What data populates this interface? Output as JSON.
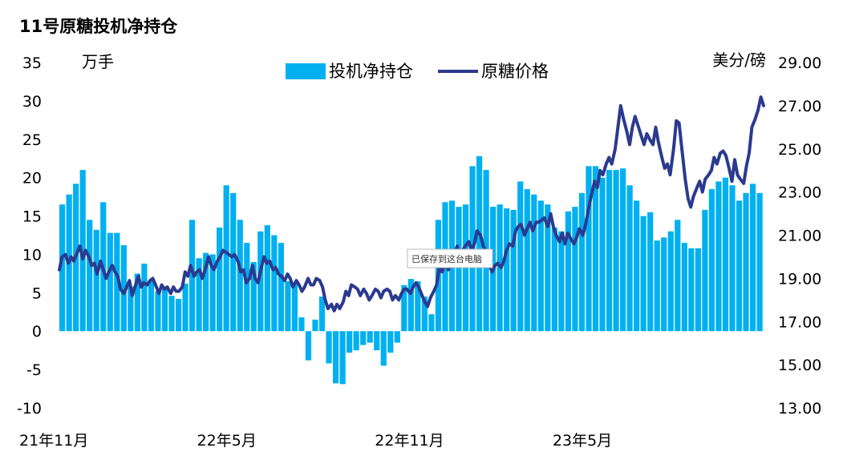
{
  "chart_data": {
    "type": "bar",
    "title": "11号原糖投机净持仓",
    "left_unit": "万手",
    "right_unit": "美分/磅",
    "y_left": {
      "min": -10,
      "max": 35,
      "ticks": [
        35,
        30,
        25,
        20,
        15,
        10,
        5,
        0,
        -5,
        -10
      ]
    },
    "y_right": {
      "min": 13,
      "max": 29,
      "ticks": [
        "29.00",
        "27.00",
        "25.00",
        "23.00",
        "21.00",
        "19.00",
        "17.00",
        "15.00",
        "13.00"
      ]
    },
    "x_tick_labels": [
      "21年11月",
      "22年5月",
      "22年11月",
      "23年5月"
    ],
    "x_tick_index": [
      0,
      26,
      52,
      78
    ],
    "grid": false,
    "legend_position": "top-center",
    "bar_color": "#00b0f0",
    "line_color": "#2b3a8f",
    "series": [
      {
        "name": "投机净持仓",
        "type": "bar",
        "values": [
          16.5,
          17.8,
          19.2,
          21.0,
          14.5,
          13.2,
          16.8,
          12.8,
          12.8,
          11.2,
          5.8,
          7.5,
          8.8,
          6.5,
          5.2,
          5.5,
          4.6,
          4.2,
          6.2,
          14.5,
          9.5,
          10.2,
          10.0,
          13.5,
          19.0,
          18.0,
          14.5,
          11.5,
          9.0,
          13.0,
          13.8,
          12.5,
          11.5,
          6.5,
          6.2,
          1.8,
          -3.8,
          1.5,
          4.5,
          -4.2,
          -6.8,
          -6.9,
          -2.8,
          -2.5,
          -1.8,
          -1.5,
          -2.5,
          -4.5,
          -2.8,
          -1.5,
          6.0,
          6.8,
          6.5,
          4.5,
          2.2,
          14.5,
          16.8,
          17.0,
          16.2,
          16.5,
          21.5,
          22.8,
          21.0,
          16.2,
          16.5,
          16.0,
          15.8,
          19.5,
          18.5,
          17.8,
          17.0,
          16.5,
          13.5,
          13.0,
          15.6,
          16.2,
          18.0,
          21.5,
          21.5,
          20.0,
          21.0,
          21.0,
          21.2,
          19.0,
          17.0,
          15.0,
          15.5,
          11.8,
          12.2,
          13.0,
          14.5,
          11.5,
          10.8,
          10.8,
          15.8,
          18.5,
          19.5,
          20.0,
          19.0,
          17.0,
          18.0,
          19.2,
          18.0
        ]
      },
      {
        "name": "原糖价格",
        "type": "line",
        "x_range": [
          0,
          102.5
        ],
        "points": [
          [
            0.0,
            19.4
          ],
          [
            0.4,
            20.0
          ],
          [
            0.9,
            20.1
          ],
          [
            1.3,
            19.7
          ],
          [
            1.7,
            20.0
          ],
          [
            2.1,
            19.8
          ],
          [
            2.6,
            20.2
          ],
          [
            3.0,
            20.5
          ],
          [
            3.4,
            19.9
          ],
          [
            3.8,
            20.3
          ],
          [
            4.3,
            20.0
          ],
          [
            4.7,
            19.6
          ],
          [
            5.1,
            19.7
          ],
          [
            5.5,
            19.2
          ],
          [
            6.0,
            19.8
          ],
          [
            6.4,
            19.4
          ],
          [
            6.8,
            19.0
          ],
          [
            7.2,
            19.3
          ],
          [
            7.7,
            19.6
          ],
          [
            8.1,
            19.3
          ],
          [
            8.5,
            19.1
          ],
          [
            8.9,
            18.5
          ],
          [
            9.4,
            18.3
          ],
          [
            9.8,
            18.6
          ],
          [
            10.2,
            18.9
          ],
          [
            10.6,
            18.2
          ],
          [
            11.1,
            18.7
          ],
          [
            11.5,
            19.1
          ],
          [
            11.9,
            18.6
          ],
          [
            12.3,
            18.8
          ],
          [
            12.8,
            18.7
          ],
          [
            13.2,
            18.9
          ],
          [
            13.6,
            19.0
          ],
          [
            14.0,
            18.7
          ],
          [
            14.5,
            18.3
          ],
          [
            14.9,
            18.7
          ],
          [
            15.3,
            18.5
          ],
          [
            15.7,
            18.6
          ],
          [
            16.2,
            18.3
          ],
          [
            16.6,
            18.6
          ],
          [
            17.0,
            18.4
          ],
          [
            17.4,
            18.4
          ],
          [
            17.9,
            18.6
          ],
          [
            18.3,
            19.3
          ],
          [
            18.7,
            19.1
          ],
          [
            19.1,
            19.6
          ],
          [
            19.6,
            19.1
          ],
          [
            20.0,
            19.3
          ],
          [
            20.4,
            19.4
          ],
          [
            20.8,
            19.0
          ],
          [
            21.3,
            19.5
          ],
          [
            21.7,
            20.0
          ],
          [
            22.1,
            19.6
          ],
          [
            22.5,
            19.4
          ],
          [
            23.0,
            19.8
          ],
          [
            23.4,
            20.0
          ],
          [
            23.8,
            20.3
          ],
          [
            24.3,
            20.2
          ],
          [
            24.7,
            20.1
          ],
          [
            25.1,
            20.0
          ],
          [
            25.5,
            20.1
          ],
          [
            26.0,
            19.8
          ],
          [
            26.4,
            19.3
          ],
          [
            26.8,
            19.4
          ],
          [
            27.2,
            18.8
          ],
          [
            27.7,
            19.0
          ],
          [
            28.1,
            19.6
          ],
          [
            28.5,
            19.0
          ],
          [
            28.9,
            18.8
          ],
          [
            29.4,
            19.5
          ],
          [
            29.8,
            20.0
          ],
          [
            30.2,
            19.7
          ],
          [
            30.6,
            19.8
          ],
          [
            31.1,
            19.4
          ],
          [
            31.5,
            19.5
          ],
          [
            31.9,
            19.2
          ],
          [
            32.3,
            19.1
          ],
          [
            32.8,
            18.9
          ],
          [
            33.2,
            19.2
          ],
          [
            33.6,
            19.0
          ],
          [
            34.0,
            18.6
          ],
          [
            34.5,
            18.9
          ],
          [
            34.9,
            18.7
          ],
          [
            35.3,
            18.4
          ],
          [
            35.7,
            18.6
          ],
          [
            36.2,
            19.0
          ],
          [
            36.6,
            18.7
          ],
          [
            37.0,
            18.7
          ],
          [
            37.4,
            19.0
          ],
          [
            37.9,
            18.9
          ],
          [
            38.3,
            18.6
          ],
          [
            38.7,
            18.0
          ],
          [
            39.1,
            17.6
          ],
          [
            39.6,
            17.8
          ],
          [
            40.0,
            17.5
          ],
          [
            40.4,
            17.8
          ],
          [
            40.8,
            17.6
          ],
          [
            41.3,
            17.9
          ],
          [
            41.7,
            18.4
          ],
          [
            42.1,
            18.2
          ],
          [
            42.5,
            18.7
          ],
          [
            43.0,
            18.6
          ],
          [
            43.4,
            18.5
          ],
          [
            43.8,
            18.2
          ],
          [
            44.3,
            18.5
          ],
          [
            44.7,
            18.3
          ],
          [
            45.1,
            18.0
          ],
          [
            45.5,
            18.2
          ],
          [
            46.0,
            18.5
          ],
          [
            46.4,
            18.4
          ],
          [
            46.8,
            18.1
          ],
          [
            47.2,
            18.4
          ],
          [
            47.7,
            18.5
          ],
          [
            48.1,
            18.4
          ],
          [
            48.5,
            18.0
          ],
          [
            48.9,
            18.2
          ],
          [
            49.4,
            18.0
          ],
          [
            49.8,
            18.3
          ],
          [
            50.2,
            18.5
          ],
          [
            50.6,
            18.5
          ],
          [
            51.1,
            18.3
          ],
          [
            51.5,
            18.6
          ],
          [
            51.9,
            18.8
          ],
          [
            52.3,
            18.6
          ],
          [
            52.8,
            18.2
          ],
          [
            53.2,
            17.9
          ],
          [
            53.6,
            17.7
          ],
          [
            54.0,
            18.1
          ],
          [
            54.5,
            18.4
          ],
          [
            54.9,
            18.7
          ],
          [
            55.3,
            19.5
          ],
          [
            55.7,
            19.3
          ],
          [
            56.2,
            19.8
          ],
          [
            56.6,
            19.4
          ],
          [
            57.0,
            19.6
          ],
          [
            57.4,
            20.0
          ],
          [
            57.9,
            20.5
          ],
          [
            58.3,
            19.8
          ],
          [
            58.7,
            20.3
          ],
          [
            59.1,
            20.5
          ],
          [
            59.6,
            20.7
          ],
          [
            60.0,
            20.3
          ],
          [
            60.4,
            20.6
          ],
          [
            60.8,
            21.2
          ],
          [
            61.3,
            21.0
          ],
          [
            61.7,
            20.5
          ],
          [
            62.1,
            20.2
          ],
          [
            62.6,
            19.6
          ],
          [
            63.0,
            19.3
          ],
          [
            63.4,
            19.6
          ],
          [
            63.8,
            19.7
          ],
          [
            64.3,
            19.5
          ],
          [
            64.7,
            19.8
          ],
          [
            65.1,
            20.3
          ],
          [
            65.5,
            20.6
          ],
          [
            66.0,
            20.5
          ],
          [
            66.4,
            21.2
          ],
          [
            66.8,
            21.4
          ],
          [
            67.2,
            21.5
          ],
          [
            67.7,
            21.0
          ],
          [
            68.1,
            21.3
          ],
          [
            68.5,
            21.6
          ],
          [
            68.9,
            21.2
          ],
          [
            69.4,
            21.6
          ],
          [
            69.8,
            21.6
          ],
          [
            70.2,
            21.7
          ],
          [
            70.6,
            21.8
          ],
          [
            71.1,
            21.4
          ],
          [
            71.5,
            22.0
          ],
          [
            71.9,
            21.4
          ],
          [
            72.3,
            21.0
          ],
          [
            72.8,
            20.7
          ],
          [
            73.2,
            21.1
          ],
          [
            73.6,
            20.6
          ],
          [
            74.0,
            21.1
          ],
          [
            74.5,
            20.8
          ],
          [
            74.9,
            20.6
          ],
          [
            75.3,
            20.9
          ],
          [
            75.7,
            21.3
          ],
          [
            76.2,
            21.0
          ],
          [
            76.6,
            21.5
          ],
          [
            77.0,
            22.2
          ],
          [
            77.4,
            22.8
          ],
          [
            77.9,
            23.5
          ],
          [
            78.3,
            23.2
          ],
          [
            78.7,
            24.0
          ],
          [
            79.1,
            23.8
          ],
          [
            79.6,
            24.3
          ],
          [
            80.0,
            24.6
          ],
          [
            80.4,
            24.3
          ],
          [
            80.9,
            25.0
          ],
          [
            81.3,
            26.0
          ],
          [
            81.7,
            27.0
          ],
          [
            82.1,
            26.4
          ],
          [
            82.6,
            25.8
          ],
          [
            83.0,
            25.2
          ],
          [
            83.4,
            26.0
          ],
          [
            83.8,
            26.5
          ],
          [
            84.3,
            26.0
          ],
          [
            84.7,
            25.6
          ],
          [
            85.1,
            25.2
          ],
          [
            85.5,
            25.7
          ],
          [
            86.0,
            25.4
          ],
          [
            86.4,
            25.2
          ],
          [
            86.8,
            26.0
          ],
          [
            87.2,
            25.3
          ],
          [
            87.7,
            24.6
          ],
          [
            88.1,
            24.1
          ],
          [
            88.5,
            24.3
          ],
          [
            88.9,
            23.8
          ],
          [
            89.4,
            25.0
          ],
          [
            89.8,
            26.3
          ],
          [
            90.2,
            26.2
          ],
          [
            90.6,
            25.0
          ],
          [
            91.1,
            23.6
          ],
          [
            91.5,
            22.7
          ],
          [
            91.9,
            22.3
          ],
          [
            92.3,
            22.8
          ],
          [
            92.8,
            23.2
          ],
          [
            93.2,
            23.5
          ],
          [
            93.6,
            23.0
          ],
          [
            94.0,
            23.6
          ],
          [
            94.5,
            23.8
          ],
          [
            94.9,
            24.0
          ],
          [
            95.3,
            24.6
          ],
          [
            95.7,
            24.3
          ],
          [
            96.2,
            24.8
          ],
          [
            96.6,
            24.9
          ],
          [
            97.0,
            24.7
          ],
          [
            97.4,
            24.2
          ],
          [
            97.9,
            23.5
          ],
          [
            98.3,
            24.5
          ],
          [
            98.7,
            23.8
          ],
          [
            99.1,
            23.6
          ],
          [
            99.6,
            23.4
          ],
          [
            100.0,
            24.2
          ],
          [
            100.4,
            24.8
          ],
          [
            100.8,
            26.0
          ],
          [
            101.3,
            26.4
          ],
          [
            101.7,
            26.8
          ],
          [
            102.1,
            27.4
          ],
          [
            102.5,
            27.0
          ]
        ]
      }
    ],
    "annotation": "已保存到这台电脑"
  }
}
